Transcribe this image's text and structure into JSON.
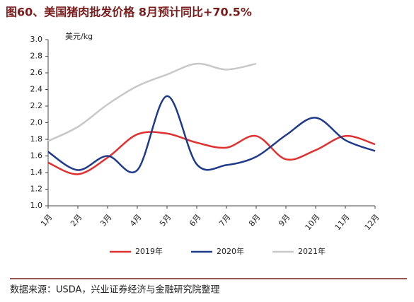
{
  "chart_data": {
    "type": "line",
    "title": "图60、美国猪肉批发价格 8月预计同比+70.5%",
    "y_label": "美元/kg",
    "source": "数据来源：USDA，兴业证券经济与金融研究院整理",
    "categories": [
      "1月",
      "2月",
      "3月",
      "4月",
      "5月",
      "6月",
      "7月",
      "8月",
      "9月",
      "10月",
      "11月",
      "12月"
    ],
    "series": [
      {
        "name": "2019年",
        "color": "#e03030",
        "values": [
          1.52,
          1.38,
          1.58,
          1.86,
          1.87,
          1.76,
          1.7,
          1.84,
          1.56,
          1.67,
          1.84,
          1.74
        ]
      },
      {
        "name": "2020年",
        "color": "#1f3a8a",
        "values": [
          1.65,
          1.43,
          1.6,
          1.43,
          2.32,
          1.5,
          1.49,
          1.59,
          1.85,
          2.06,
          1.79,
          1.66
        ]
      },
      {
        "name": "2021年",
        "color": "#c8c8c8",
        "values": [
          1.78,
          1.95,
          2.22,
          2.44,
          2.58,
          2.71,
          2.64,
          2.71,
          null,
          null,
          null,
          null
        ]
      }
    ],
    "ylim": [
      1.0,
      3.0
    ],
    "yticks": [
      {
        "value": 1.0,
        "label": "1.0"
      },
      1.2,
      1.4,
      1.6,
      1.8,
      {
        "value": 2.0,
        "label": "2.0"
      },
      2.2,
      2.4,
      2.6,
      2.8,
      {
        "value": 3.0,
        "label": "3.0"
      }
    ]
  }
}
